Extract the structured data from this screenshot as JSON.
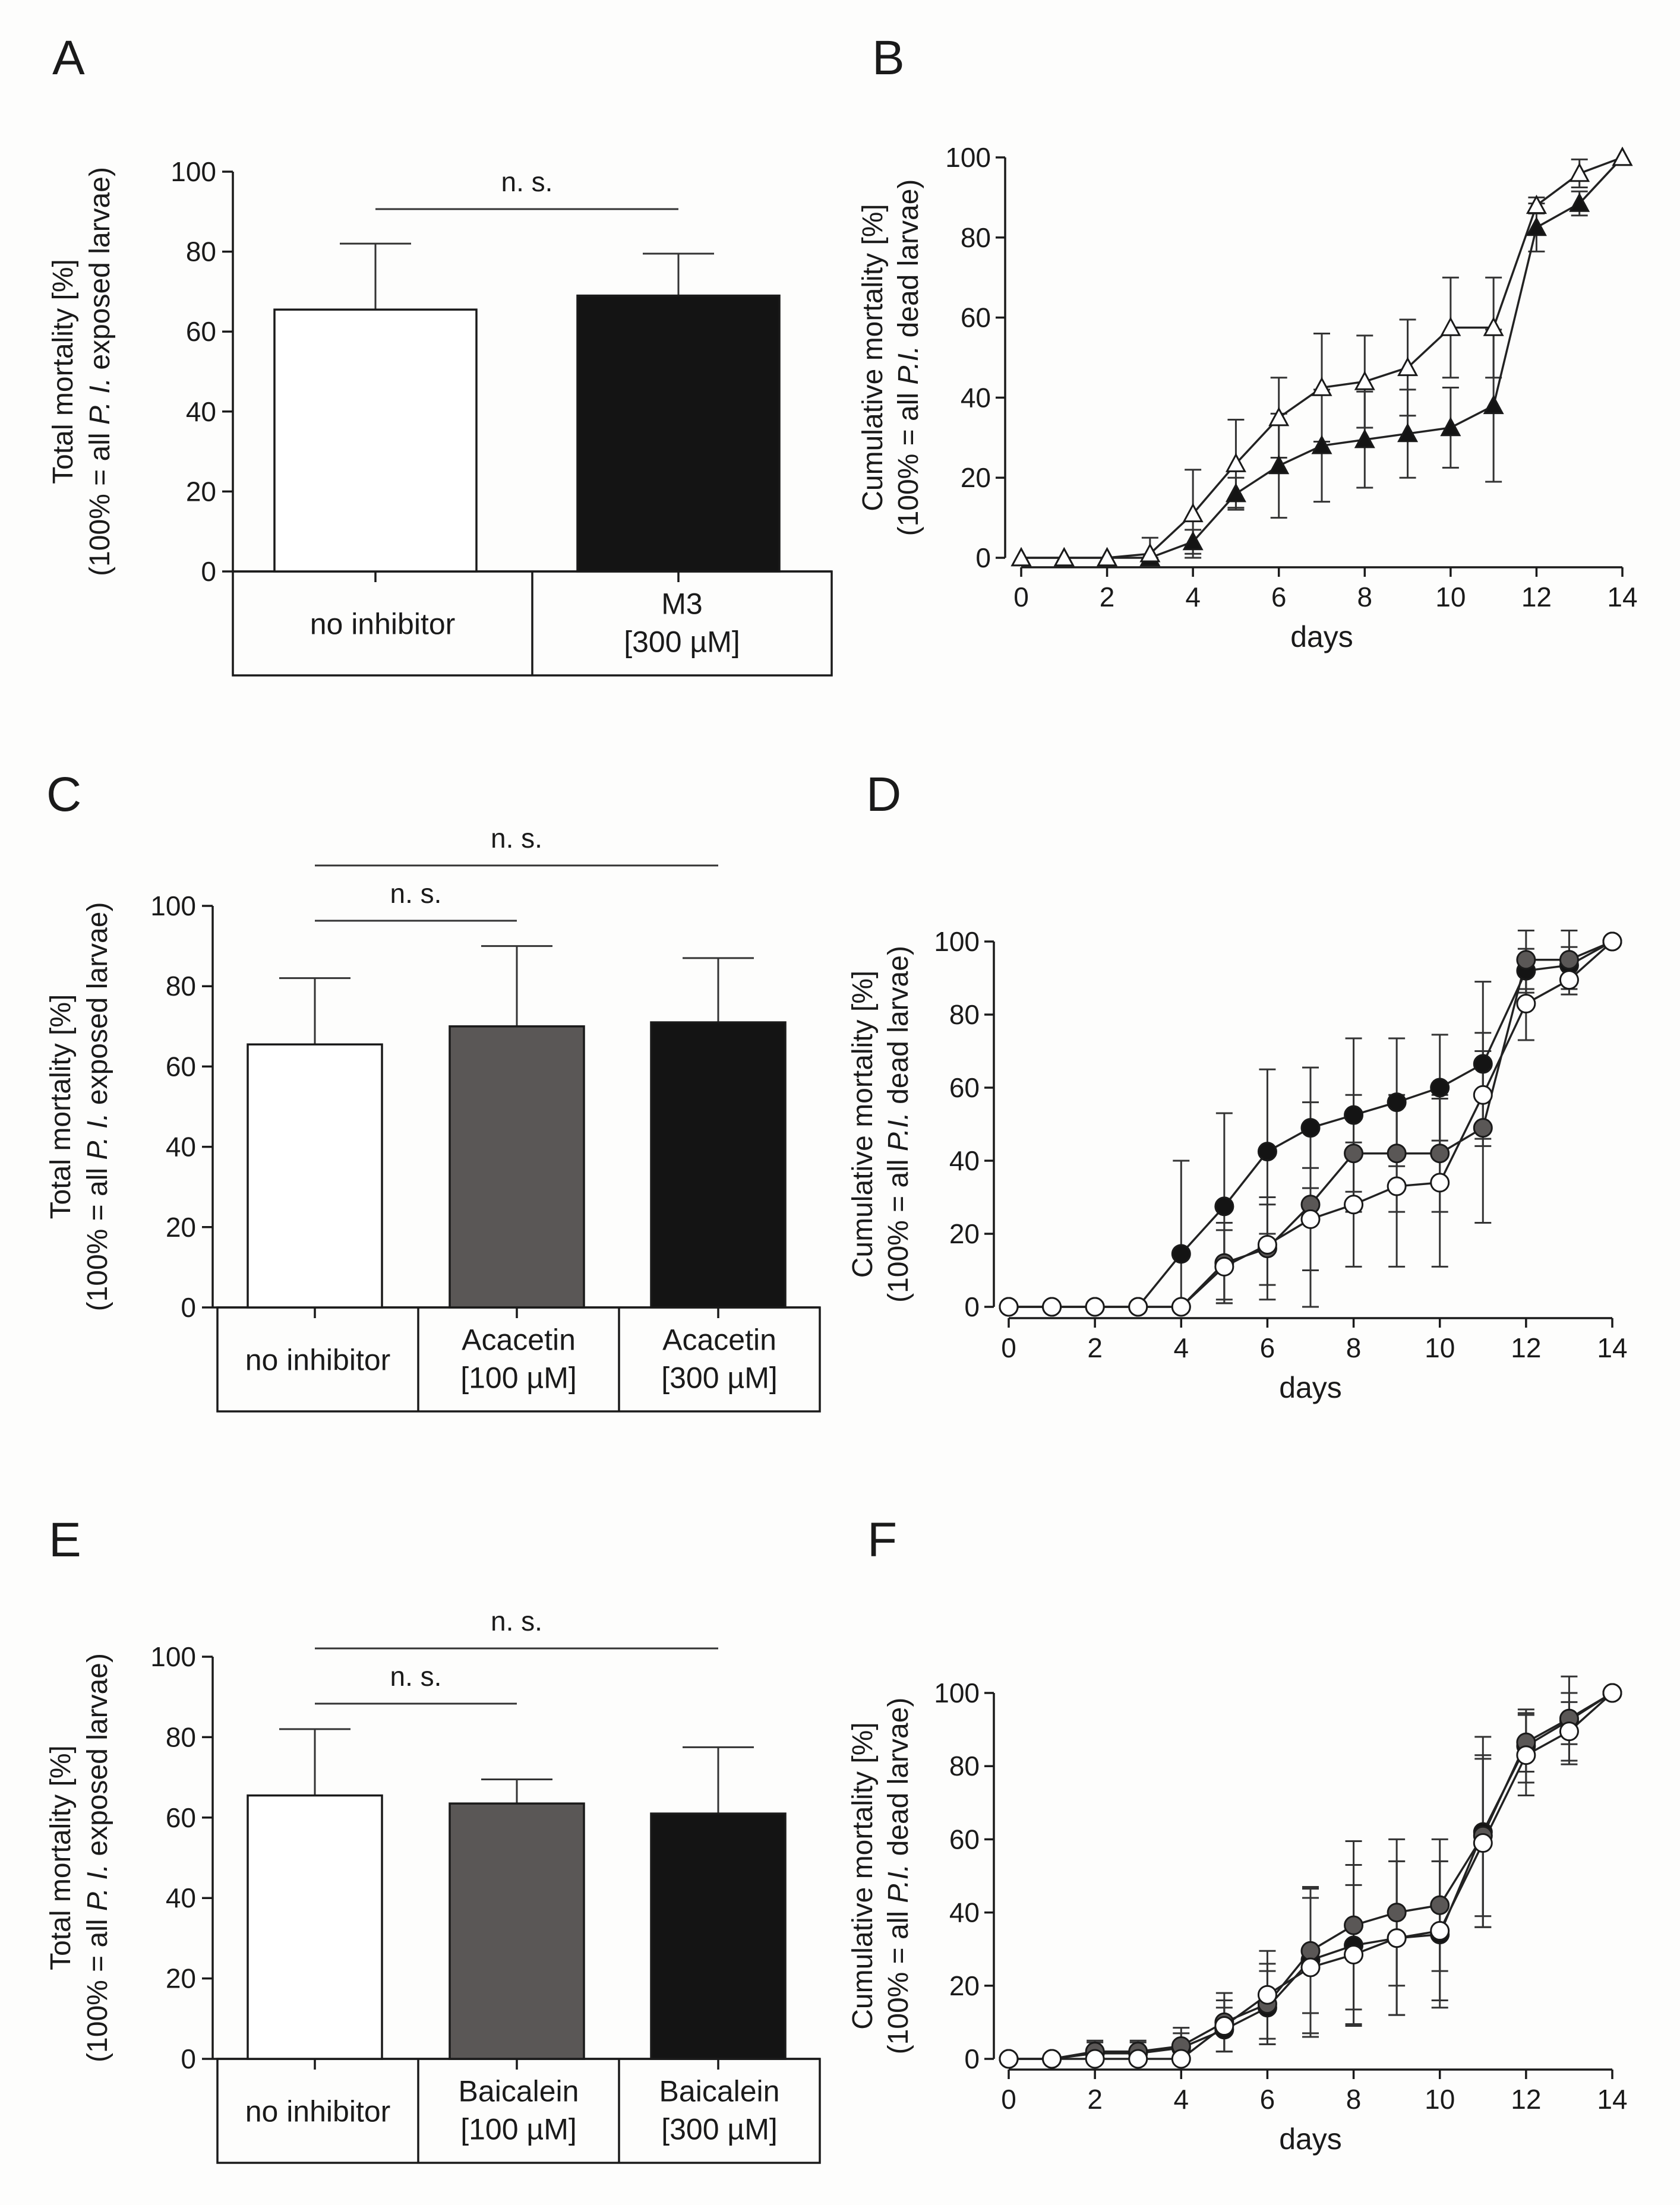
{
  "colors": {
    "white": "#ffffff",
    "gray": "#5a5756",
    "black": "#141414",
    "line": "#222222"
  },
  "chart_data": [
    {
      "panel": "A",
      "type": "bar",
      "ylabel_line1": "Total mortality [%]",
      "ylabel_line2_pre": "(100% = all ",
      "ylabel_line2_ital": "P. I.",
      "ylabel_line2_post": " exposed larvae)",
      "ylim": [
        0,
        100
      ],
      "yticks": [
        "0",
        "20",
        "40",
        "60",
        "80",
        "100"
      ],
      "categories": [
        [
          "no inhibitor"
        ],
        [
          "M3",
          "[300 µM]"
        ]
      ],
      "values": [
        65.5,
        69
      ],
      "errors": [
        16.5,
        10.5
      ],
      "fill": [
        "white",
        "black"
      ],
      "significance": [
        {
          "from": 0,
          "to": 1,
          "label": "n. s."
        }
      ]
    },
    {
      "panel": "B",
      "type": "line",
      "ylabel_line1": "Cumulative mortality [%]",
      "ylabel_line2_pre": "(100% = all ",
      "ylabel_line2_ital": "P.I.",
      "ylabel_line2_post": " dead larvae)",
      "xlabel": "days",
      "xlim": [
        0,
        14
      ],
      "ylim": [
        0,
        100
      ],
      "xticks": [
        "0",
        "2",
        "4",
        "6",
        "8",
        "10",
        "12",
        "14"
      ],
      "yticks": [
        "0",
        "20",
        "40",
        "60",
        "80",
        "100"
      ],
      "series": [
        {
          "name": "filled triangle",
          "marker": "triangle",
          "fill": "black",
          "x": [
            0,
            1,
            2,
            3,
            4,
            5,
            6,
            7,
            8,
            9,
            10,
            11,
            12,
            13,
            14
          ],
          "y": [
            0,
            0,
            0,
            0,
            4,
            16,
            23,
            28,
            29.5,
            31,
            32.5,
            38,
            82.5,
            88.5,
            100
          ],
          "err": [
            0,
            0,
            0,
            0,
            3,
            4,
            13,
            14,
            12,
            11,
            10,
            19,
            6,
            3,
            0
          ]
        },
        {
          "name": "open triangle",
          "marker": "triangle",
          "fill": "white",
          "x": [
            0,
            1,
            2,
            3,
            4,
            5,
            6,
            7,
            8,
            9,
            10,
            11,
            12,
            13,
            14
          ],
          "y": [
            0,
            0,
            0,
            1,
            11,
            23.5,
            35,
            42.5,
            44,
            47.5,
            57.5,
            57.5,
            88,
            96,
            100
          ],
          "err": [
            0,
            0,
            0,
            4,
            11,
            11,
            10,
            13.5,
            11.5,
            12,
            12.5,
            12.5,
            2,
            3.5,
            0
          ]
        }
      ]
    },
    {
      "panel": "C",
      "type": "bar",
      "ylabel_line1": "Total mortality [%]",
      "ylabel_line2_pre": "(100% = all ",
      "ylabel_line2_ital": "P. I.",
      "ylabel_line2_post": " exposed larvae)",
      "ylim": [
        0,
        100
      ],
      "yticks": [
        "0",
        "20",
        "40",
        "60",
        "80",
        "100"
      ],
      "categories": [
        [
          "no inhibitor"
        ],
        [
          "Acacetin",
          "[100 µM]"
        ],
        [
          "Acacetin",
          "[300 µM]"
        ]
      ],
      "values": [
        65.5,
        70,
        71
      ],
      "errors": [
        16.5,
        20,
        16
      ],
      "fill": [
        "white",
        "gray",
        "black"
      ],
      "significance": [
        {
          "from": 0,
          "to": 1,
          "label": "n. s."
        },
        {
          "from": 0,
          "to": 2,
          "label": "n. s."
        }
      ]
    },
    {
      "panel": "D",
      "type": "line",
      "ylabel_line1": "Cumulative mortality [%]",
      "ylabel_line2_pre": "(100% = all ",
      "ylabel_line2_ital": "P.I.",
      "ylabel_line2_post": " dead larvae)",
      "xlabel": "days",
      "xlim": [
        0,
        14
      ],
      "ylim": [
        0,
        100
      ],
      "xticks": [
        "0",
        "2",
        "4",
        "6",
        "8",
        "10",
        "12",
        "14"
      ],
      "yticks": [
        "0",
        "20",
        "40",
        "60",
        "80",
        "100"
      ],
      "series": [
        {
          "name": "black circle",
          "marker": "circle",
          "fill": "black",
          "x": [
            0,
            1,
            2,
            3,
            4,
            5,
            6,
            7,
            8,
            9,
            10,
            11,
            12,
            13,
            14
          ],
          "y": [
            0,
            0,
            0,
            0,
            14.5,
            27.5,
            42.5,
            49,
            52.5,
            56,
            60,
            66.5,
            92,
            93.5,
            100
          ],
          "err": [
            0,
            0,
            0,
            0,
            25.5,
            25.5,
            22.5,
            16.5,
            21,
            17.5,
            14.5,
            22.5,
            6,
            5,
            0
          ]
        },
        {
          "name": "gray circle",
          "marker": "circle",
          "fill": "gray",
          "x": [
            0,
            1,
            2,
            3,
            4,
            5,
            6,
            7,
            8,
            9,
            10,
            11,
            12,
            13,
            14
          ],
          "y": [
            0,
            0,
            0,
            0,
            0,
            12,
            16,
            28,
            42,
            42,
            42,
            49,
            95,
            95,
            100
          ],
          "err": [
            0,
            0,
            0,
            0,
            0,
            11,
            14,
            28,
            16,
            16,
            16,
            26,
            8,
            8,
            0
          ]
        },
        {
          "name": "open circle",
          "marker": "circle",
          "fill": "white",
          "x": [
            0,
            1,
            2,
            3,
            4,
            5,
            6,
            7,
            8,
            9,
            10,
            11,
            12,
            13,
            14
          ],
          "y": [
            0,
            0,
            0,
            0,
            0,
            11,
            17,
            24,
            28,
            33,
            34,
            58,
            83,
            89.5,
            100
          ],
          "err": [
            0,
            0,
            0,
            0,
            0,
            10,
            11,
            14,
            17,
            22,
            23,
            12,
            10,
            4,
            0
          ]
        }
      ]
    },
    {
      "panel": "E",
      "type": "bar",
      "ylabel_line1": "Total mortality [%]",
      "ylabel_line2_pre": "(100% = all ",
      "ylabel_line2_ital": "P. I.",
      "ylabel_line2_post": " exposed larvae)",
      "ylim": [
        0,
        100
      ],
      "yticks": [
        "0",
        "20",
        "40",
        "60",
        "80",
        "100"
      ],
      "categories": [
        [
          "no inhibitor"
        ],
        [
          "Baicalein",
          "[100 µM]"
        ],
        [
          "Baicalein",
          "[300 µM]"
        ]
      ],
      "values": [
        65.5,
        63.5,
        61
      ],
      "errors": [
        16.5,
        6,
        16.5
      ],
      "fill": [
        "white",
        "gray",
        "black"
      ],
      "significance": [
        {
          "from": 0,
          "to": 1,
          "label": "n. s."
        },
        {
          "from": 0,
          "to": 2,
          "label": "n. s."
        }
      ]
    },
    {
      "panel": "F",
      "type": "line",
      "ylabel_line1": "Cumulative mortality [%]",
      "ylabel_line2_pre": "(100% = all ",
      "ylabel_line2_ital": "P.I.",
      "ylabel_line2_post": " dead larvae)",
      "xlabel": "days",
      "xlim": [
        0,
        14
      ],
      "ylim": [
        0,
        100
      ],
      "xticks": [
        "0",
        "2",
        "4",
        "6",
        "8",
        "10",
        "12",
        "14"
      ],
      "yticks": [
        "0",
        "20",
        "40",
        "60",
        "80",
        "100"
      ],
      "series": [
        {
          "name": "black circle",
          "marker": "circle",
          "fill": "black",
          "x": [
            0,
            1,
            2,
            3,
            4,
            5,
            6,
            7,
            8,
            9,
            10,
            11,
            12,
            13,
            14
          ],
          "y": [
            0,
            0,
            1.5,
            1.5,
            3,
            8,
            14,
            27,
            31,
            33,
            34,
            62,
            85.5,
            92.5,
            100
          ],
          "err": [
            0,
            0,
            3,
            3,
            4,
            6,
            10,
            20,
            22,
            21,
            20,
            26,
            10,
            12,
            0
          ]
        },
        {
          "name": "gray circle",
          "marker": "circle",
          "fill": "gray",
          "x": [
            0,
            1,
            2,
            3,
            4,
            5,
            6,
            7,
            8,
            9,
            10,
            11,
            12,
            13,
            14
          ],
          "y": [
            0,
            0,
            2,
            2,
            3.5,
            10,
            15,
            29.5,
            36.5,
            40,
            42,
            61,
            86.5,
            93,
            100
          ],
          "err": [
            0,
            0,
            3,
            3,
            5,
            8,
            11,
            17,
            23,
            20,
            18,
            22,
            8,
            7,
            0
          ]
        },
        {
          "name": "open circle",
          "marker": "circle",
          "fill": "white",
          "x": [
            0,
            1,
            2,
            3,
            4,
            5,
            6,
            7,
            8,
            9,
            10,
            11,
            12,
            13,
            14
          ],
          "y": [
            0,
            0,
            0,
            0,
            0,
            9,
            17.5,
            25,
            28.5,
            33,
            35,
            59,
            83,
            89.5,
            100
          ],
          "err": [
            0,
            0,
            0,
            0,
            0,
            7,
            12,
            19,
            19,
            21,
            19,
            23,
            11,
            8,
            0
          ]
        }
      ]
    }
  ]
}
